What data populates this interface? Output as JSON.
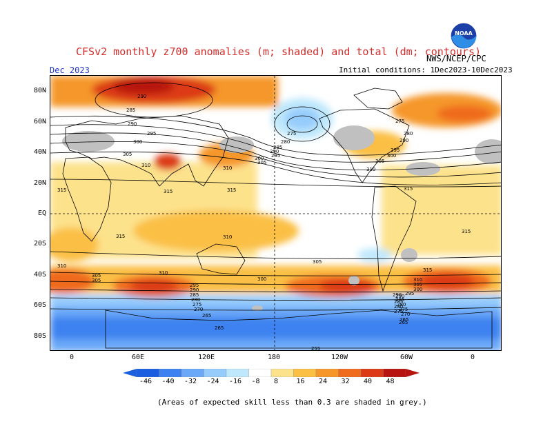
{
  "header": {
    "title": "CFSv2 monthly z700 anomalies (m; shaded) and total (dm; contours)",
    "month": "Dec 2023",
    "initial_conditions": "Initial conditions: 1Dec2023-10Dec2023",
    "agency": "NWS/NCEP/CPC",
    "logo_text": "NOAA"
  },
  "axes": {
    "lat_labels": [
      "80N",
      "60N",
      "40N",
      "20N",
      "EQ",
      "20S",
      "40S",
      "60S",
      "80S"
    ],
    "lon_labels": [
      "0",
      "60E",
      "120E",
      "180",
      "120W",
      "60W",
      "0"
    ]
  },
  "contour_labels": [
    "290",
    "285",
    "290",
    "295",
    "300",
    "305",
    "310",
    "315",
    "275",
    "280",
    "285",
    "290",
    "295",
    "300",
    "305",
    "310",
    "315",
    "275",
    "280",
    "290",
    "295",
    "300",
    "305",
    "310",
    "315",
    "315",
    "315",
    "315",
    "310",
    "305",
    "310",
    "305",
    "300",
    "305",
    "310",
    "295",
    "290",
    "285",
    "280",
    "275",
    "270",
    "265",
    "265",
    "265",
    "290",
    "285",
    "280",
    "275",
    "270",
    "265",
    "315",
    "310",
    "305",
    "300",
    "295",
    "290",
    "285",
    "280",
    "275",
    "255"
  ],
  "colorbar": {
    "labels": [
      "-46",
      "-40",
      "-32",
      "-24",
      "-16",
      "-8",
      "8",
      "16",
      "24",
      "32",
      "40",
      "48"
    ],
    "colors": [
      "#1a5fe0",
      "#3c82f0",
      "#6aa8f8",
      "#96ccfc",
      "#bfe8fc",
      "#ffffff",
      "#fde28c",
      "#fbbf45",
      "#f5972b",
      "#ef6b1e",
      "#dc3a14",
      "#b8140f"
    ]
  },
  "footnote": "(Areas of expected skill less than 0.3 are shaded in grey.)"
}
